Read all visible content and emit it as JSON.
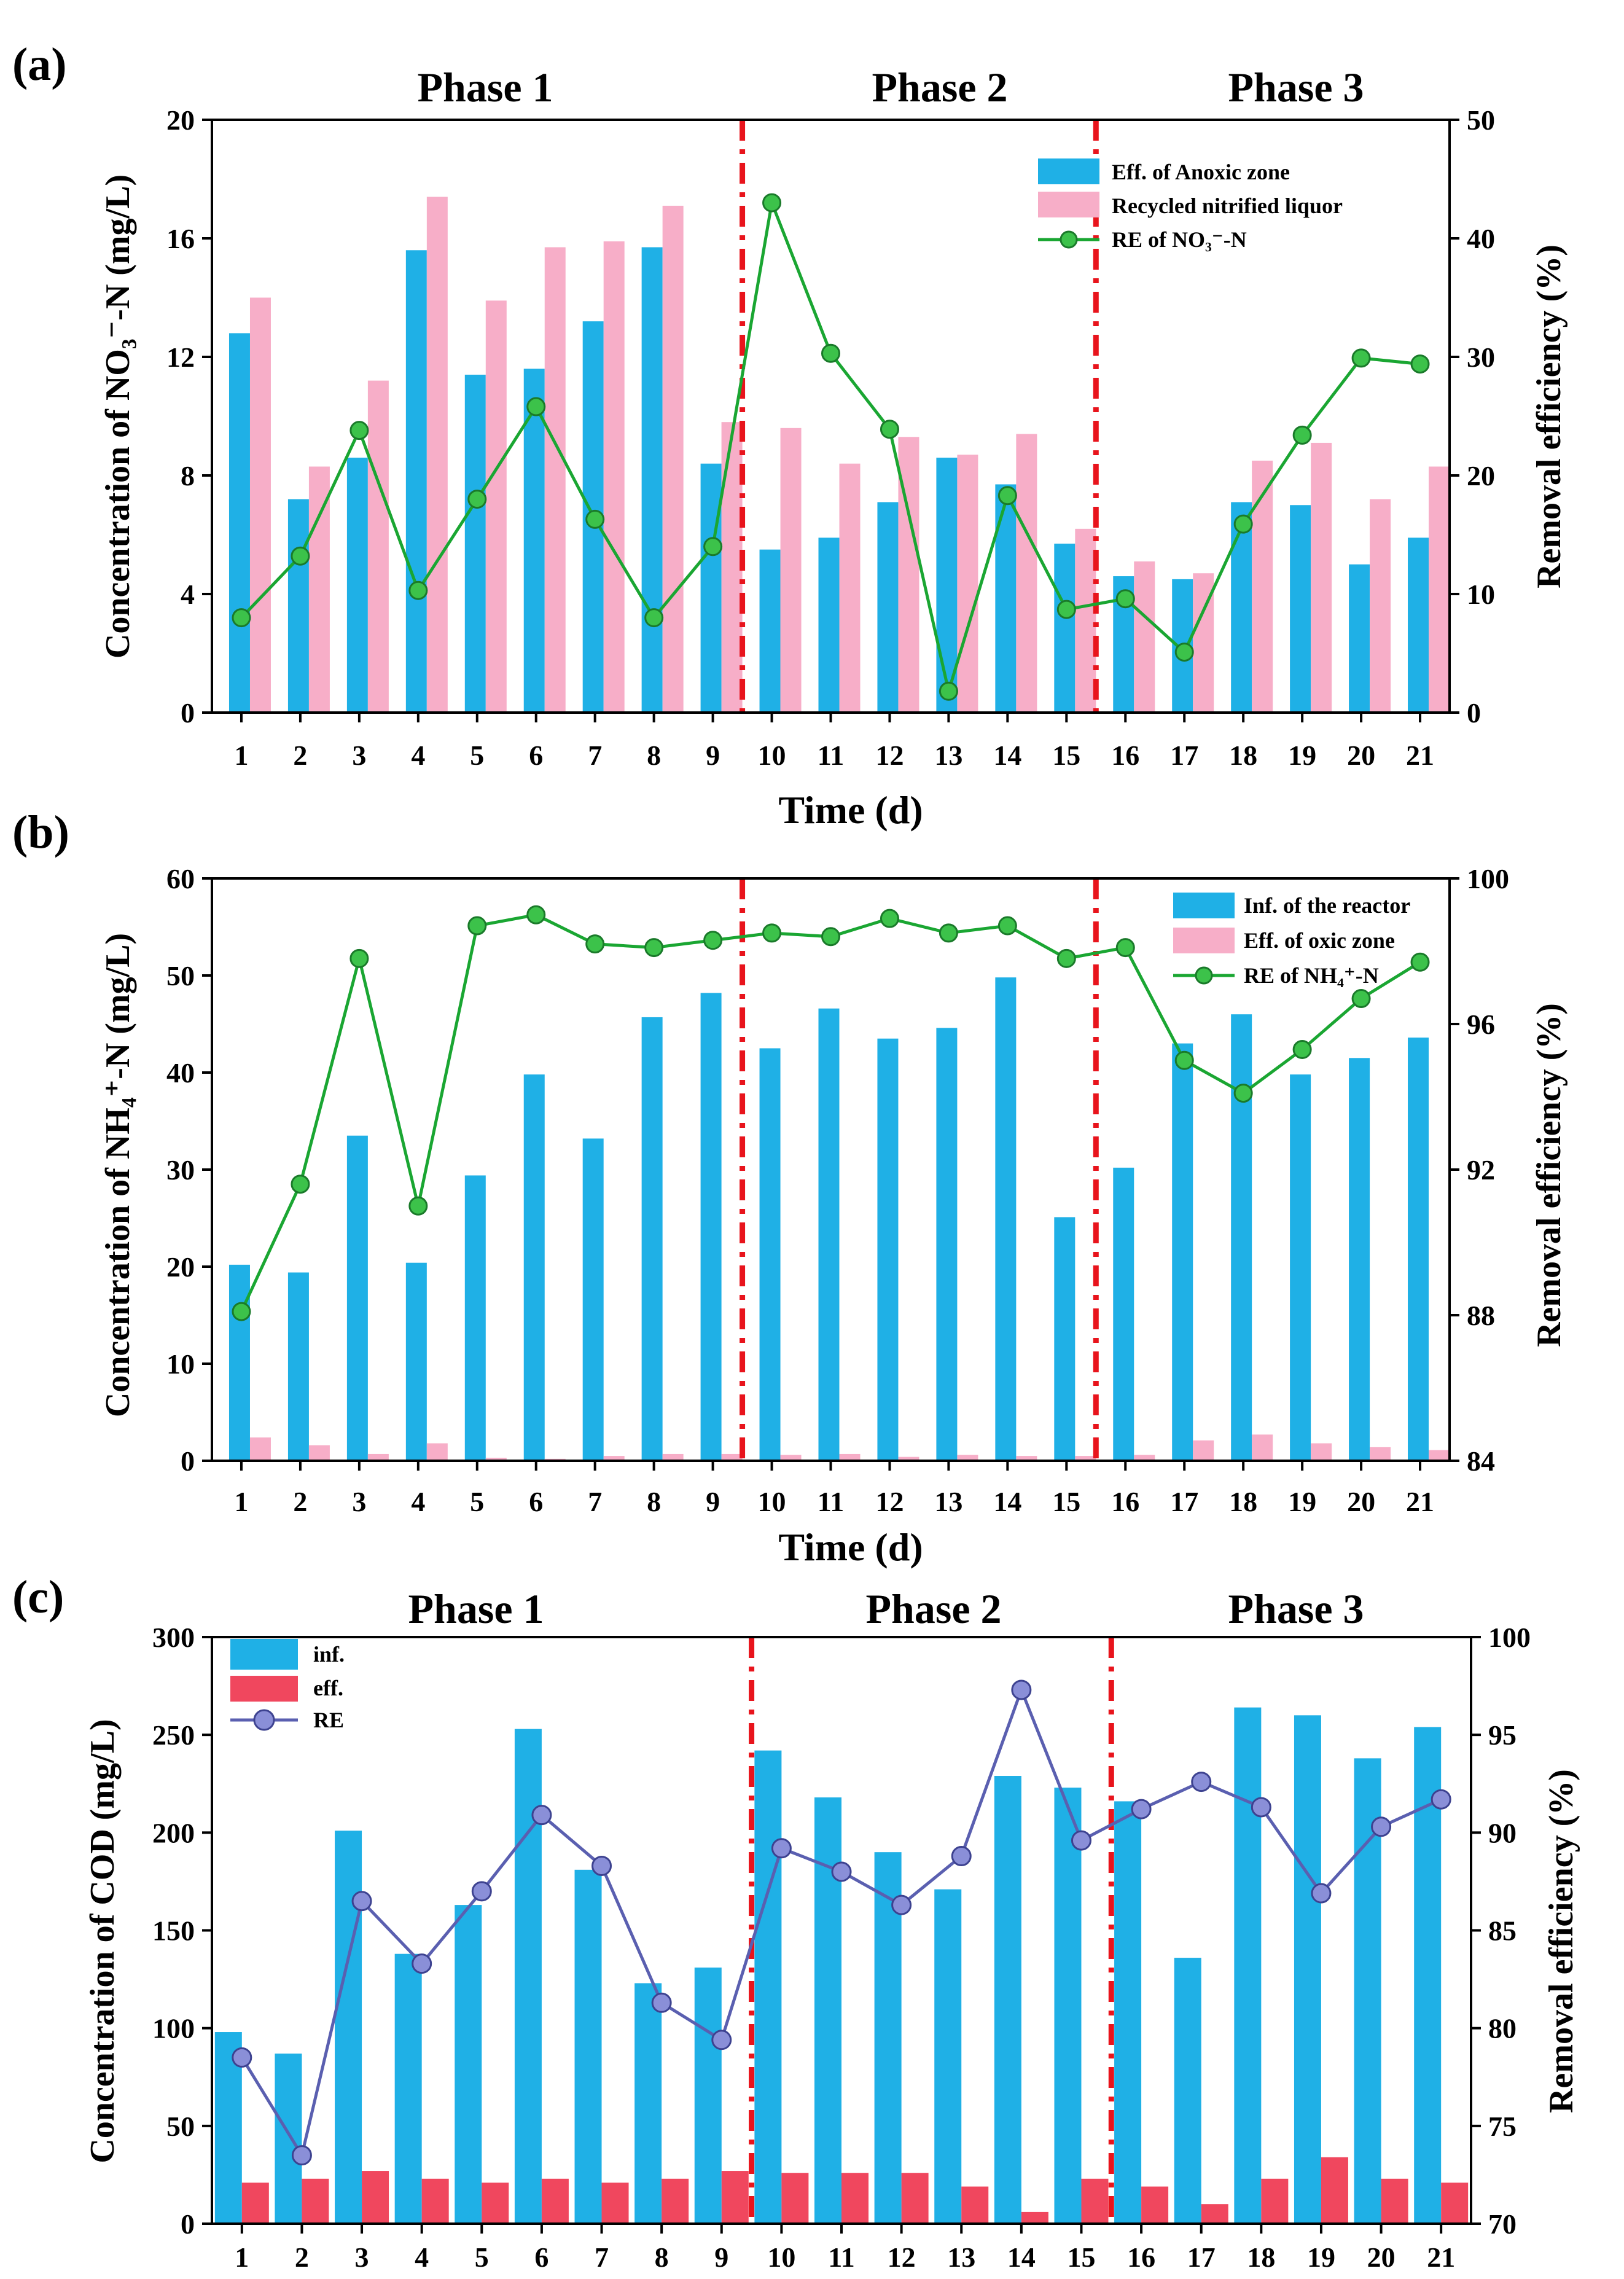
{
  "panels": [
    {
      "id": "a",
      "label": "(a)",
      "phases": [
        "Phase 1",
        "Phase 2",
        "Phase 3"
      ],
      "ylabel_left": "Concentration of NO₃⁻-N (mg/L)",
      "ylabel_right": "Removal efficiency (%)",
      "xlabel": "Time (d)",
      "legend": [
        "Eff. of Anoxic zone",
        "Recycled nitrified liquor",
        "RE of NO₃⁻-N"
      ],
      "colors": {
        "bar1": "#1fb0e6",
        "bar2": "#f7aec8",
        "line": "#1aa632",
        "marker": "#3cc24a"
      }
    },
    {
      "id": "b",
      "label": "(b)",
      "ylabel_left": "Concentration of NH₄⁺-N (mg/L)",
      "ylabel_right": "Removal efficiency (%)",
      "xlabel": "Time (d)",
      "legend": [
        "Inf. of the reactor",
        "Eff. of oxic zone",
        "RE of NH₄⁺-N"
      ],
      "colors": {
        "bar1": "#1fb0e6",
        "bar2": "#f7aec8",
        "line": "#1aa632",
        "marker": "#3cc24a"
      }
    },
    {
      "id": "c",
      "label": "(c)",
      "phases": [
        "Phase 1",
        "Phase 2",
        "Phase 3"
      ],
      "ylabel_left": "Concentration of COD (mg/L)",
      "ylabel_right": "Removal efficiency (%)",
      "legend": [
        "inf.",
        "eff.",
        "RE"
      ],
      "colors": {
        "bar1": "#1fb0e6",
        "bar2": "#f0475e",
        "line": "#5a5fb0",
        "marker": "#8a8fd8"
      }
    }
  ],
  "chart_data": [
    {
      "type": "bar",
      "title": "",
      "xlabel": "Time (d)",
      "ylabel": "Concentration of NO3- -N (mg/L)",
      "y2label": "Removal efficiency (%)",
      "categories": [
        "1",
        "2",
        "3",
        "4",
        "5",
        "6",
        "7",
        "8",
        "9",
        "10",
        "11",
        "12",
        "13",
        "14",
        "15",
        "16",
        "17",
        "18",
        "19",
        "20",
        "21"
      ],
      "ylim": [
        0,
        20
      ],
      "yticks": [
        0,
        4,
        8,
        12,
        16,
        20
      ],
      "y2lim": [
        0,
        50
      ],
      "y2ticks": [
        0,
        10,
        20,
        30,
        40,
        50
      ],
      "phase_dividers_after": [
        9,
        15
      ],
      "series": [
        {
          "name": "Eff. of Anoxic zone",
          "axis": "left",
          "kind": "bar",
          "values": [
            12.8,
            7.2,
            8.6,
            15.6,
            11.4,
            11.6,
            13.2,
            15.7,
            8.4,
            5.5,
            5.9,
            7.1,
            8.6,
            7.7,
            5.7,
            4.6,
            4.5,
            7.1,
            7.0,
            5.0,
            5.9
          ]
        },
        {
          "name": "Recycled nitrified liquor",
          "axis": "left",
          "kind": "bar",
          "values": [
            14.0,
            8.3,
            11.2,
            17.4,
            13.9,
            15.7,
            15.9,
            17.1,
            9.8,
            9.6,
            8.4,
            9.3,
            8.7,
            9.4,
            6.2,
            5.1,
            4.7,
            8.5,
            9.1,
            7.2,
            8.3
          ]
        },
        {
          "name": "RE of NO3- -N",
          "axis": "right",
          "kind": "line",
          "values": [
            8.0,
            13.2,
            23.8,
            10.3,
            18.0,
            25.8,
            16.3,
            8.0,
            14.0,
            43.0,
            30.3,
            23.9,
            1.8,
            18.3,
            8.7,
            9.6,
            5.1,
            15.9,
            23.4,
            29.9,
            29.4
          ]
        }
      ]
    },
    {
      "type": "bar",
      "title": "",
      "xlabel": "Time (d)",
      "ylabel": "Concentration of NH4+ -N (mg/L)",
      "y2label": "Removal efficiency (%)",
      "categories": [
        "1",
        "2",
        "3",
        "4",
        "5",
        "6",
        "7",
        "8",
        "9",
        "10",
        "11",
        "12",
        "13",
        "14",
        "15",
        "16",
        "17",
        "18",
        "19",
        "20",
        "21"
      ],
      "ylim": [
        0,
        60
      ],
      "yticks": [
        0,
        10,
        20,
        30,
        40,
        50,
        60
      ],
      "y2lim": [
        84,
        100
      ],
      "y2ticks": [
        84,
        88,
        92,
        96,
        100
      ],
      "phase_dividers_after": [
        9,
        15
      ],
      "series": [
        {
          "name": "Inf. of the reactor",
          "axis": "left",
          "kind": "bar",
          "values": [
            20.2,
            19.4,
            33.5,
            20.4,
            29.4,
            39.8,
            33.2,
            45.7,
            48.2,
            42.5,
            46.6,
            43.5,
            44.6,
            49.8,
            25.1,
            30.2,
            43.0,
            46.0,
            39.8,
            41.5,
            43.6
          ]
        },
        {
          "name": "Eff. of oxic zone",
          "axis": "left",
          "kind": "bar",
          "values": [
            2.4,
            1.6,
            0.7,
            1.8,
            0.3,
            0.2,
            0.5,
            0.7,
            0.7,
            0.6,
            0.7,
            0.4,
            0.6,
            0.5,
            0.5,
            0.6,
            2.1,
            2.7,
            1.8,
            1.4,
            1.1
          ]
        },
        {
          "name": "RE of NH4+ -N",
          "axis": "right",
          "kind": "line",
          "values": [
            88.1,
            91.6,
            97.8,
            91.0,
            98.7,
            99.0,
            98.2,
            98.1,
            98.3,
            98.5,
            98.4,
            98.9,
            98.5,
            98.7,
            97.8,
            98.1,
            95.0,
            94.1,
            95.3,
            96.7,
            97.7
          ]
        }
      ]
    },
    {
      "type": "bar",
      "title": "",
      "xlabel": "",
      "ylabel": "Concentration of COD (mg/L)",
      "y2label": "Removal efficiency (%)",
      "categories": [
        "1",
        "2",
        "3",
        "4",
        "5",
        "6",
        "7",
        "8",
        "9",
        "10",
        "11",
        "12",
        "13",
        "14",
        "15",
        "16",
        "17",
        "18",
        "19",
        "20",
        "21"
      ],
      "ylim": [
        0,
        300
      ],
      "yticks": [
        0,
        50,
        100,
        150,
        200,
        250,
        300
      ],
      "y2lim": [
        70,
        100
      ],
      "y2ticks": [
        70,
        75,
        80,
        85,
        90,
        95,
        100
      ],
      "phase_dividers_after": [
        9,
        15
      ],
      "series": [
        {
          "name": "inf.",
          "axis": "left",
          "kind": "bar",
          "values": [
            98,
            87,
            201,
            138,
            163,
            253,
            181,
            123,
            131,
            242,
            218,
            190,
            171,
            229,
            223,
            216,
            136,
            264,
            260,
            238,
            254
          ]
        },
        {
          "name": "eff.",
          "axis": "left",
          "kind": "bar",
          "values": [
            21,
            23,
            27,
            23,
            21,
            23,
            21,
            23,
            27,
            26,
            26,
            26,
            19,
            6,
            23,
            19,
            10,
            23,
            34,
            23,
            21
          ]
        },
        {
          "name": "RE",
          "axis": "right",
          "kind": "line",
          "values": [
            78.5,
            73.5,
            86.5,
            83.3,
            87.0,
            90.9,
            88.3,
            81.3,
            79.4,
            89.2,
            88.0,
            86.3,
            88.8,
            97.3,
            89.6,
            91.2,
            92.6,
            91.3,
            86.9,
            90.3,
            91.7
          ]
        }
      ]
    }
  ]
}
